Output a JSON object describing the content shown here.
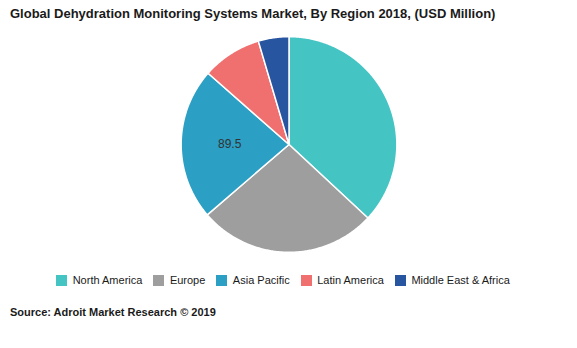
{
  "chart_data": {
    "type": "pie",
    "title": "Global Dehydration Monitoring Systems Market, By Region 2018, (USD Million)",
    "caption": "Source: Adroit Market Research © 2019",
    "categories": [
      "North America",
      "Europe",
      "Asia Pacific",
      "Latin America",
      "Middle East & Africa"
    ],
    "values": [
      145.0,
      105.0,
      89.5,
      35.0,
      18.0
    ],
    "value_labels": [
      null,
      null,
      "89.5",
      null,
      null
    ],
    "colors": [
      "#45C4C4",
      "#9E9E9E",
      "#2B9FC4",
      "#F07070",
      "#2855A0"
    ],
    "legend": "bottom"
  }
}
